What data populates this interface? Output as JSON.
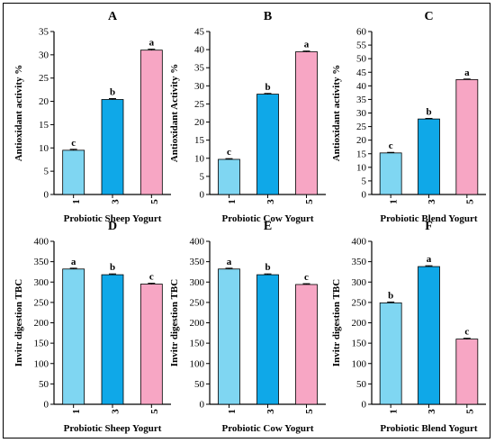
{
  "colors": {
    "bar_1": "#7fd6f2",
    "bar_3": "#0fa8e8",
    "bar_5": "#f7a6c4",
    "axis": "#000000"
  },
  "chart_data": [
    {
      "type": "bar",
      "title": "A",
      "xlabel": "Probiotic Sheep Yogurt",
      "ylabel": "Antioxidant activity %",
      "categories": [
        "1",
        "3",
        "5"
      ],
      "values": [
        9.5,
        20.4,
        31
      ],
      "errors": [
        0.2,
        0.2,
        0.2
      ],
      "letters": [
        "c",
        "b",
        "a"
      ],
      "ylim": [
        0,
        35
      ],
      "yticks": [
        0,
        5,
        10,
        15,
        20,
        25,
        30,
        35
      ]
    },
    {
      "type": "bar",
      "title": "B",
      "xlabel": "Probiotic Cow Yogurt",
      "ylabel": "Antioxidant Activity %",
      "categories": [
        "1",
        "3",
        "5"
      ],
      "values": [
        9.7,
        27.7,
        39.4
      ],
      "errors": [
        0.2,
        0.2,
        0.2
      ],
      "letters": [
        "c",
        "b",
        "a"
      ],
      "ylim": [
        0,
        45
      ],
      "yticks": [
        0,
        5,
        10,
        15,
        20,
        25,
        30,
        35,
        40,
        45
      ]
    },
    {
      "type": "bar",
      "title": "C",
      "xlabel": "Probiotic Blend Yogurt",
      "ylabel": "Antioxidant activity %",
      "categories": [
        "1",
        "3",
        "5"
      ],
      "values": [
        15.3,
        27.8,
        42.3
      ],
      "errors": [
        0.2,
        0.2,
        0.2
      ],
      "letters": [
        "c",
        "b",
        "a"
      ],
      "ylim": [
        0,
        60
      ],
      "yticks": [
        0,
        5,
        10,
        15,
        20,
        25,
        30,
        35,
        40,
        45,
        50,
        55,
        60
      ]
    },
    {
      "type": "bar",
      "title": "D",
      "xlabel": "Probiotic Sheep Yogurt",
      "ylabel": "Invitr digestion TBC",
      "categories": [
        "1",
        "3",
        "5"
      ],
      "values": [
        332,
        318,
        295
      ],
      "errors": [
        2,
        2,
        2
      ],
      "letters": [
        "a",
        "b",
        "c"
      ],
      "ylim": [
        0,
        400
      ],
      "yticks": [
        0,
        50,
        100,
        150,
        200,
        250,
        300,
        350,
        400
      ]
    },
    {
      "type": "bar",
      "title": "E",
      "xlabel": "Probiotic Cow Yogurt",
      "ylabel": "Invitr digestion TBC",
      "categories": [
        "1",
        "3",
        "5"
      ],
      "values": [
        332,
        318,
        294
      ],
      "errors": [
        2,
        2,
        2
      ],
      "letters": [
        "a",
        "b",
        "c"
      ],
      "ylim": [
        0,
        400
      ],
      "yticks": [
        0,
        50,
        100,
        150,
        200,
        250,
        300,
        350,
        400
      ]
    },
    {
      "type": "bar",
      "title": "F",
      "xlabel": "Probiotic Blend Yogurt",
      "ylabel": "Invitr digestion TBC",
      "categories": [
        "1",
        "3",
        "5"
      ],
      "values": [
        249,
        338,
        160
      ],
      "errors": [
        2,
        2,
        2
      ],
      "letters": [
        "b",
        "a",
        "c"
      ],
      "ylim": [
        0,
        400
      ],
      "yticks": [
        0,
        50,
        100,
        150,
        200,
        250,
        300,
        350,
        400
      ]
    }
  ]
}
